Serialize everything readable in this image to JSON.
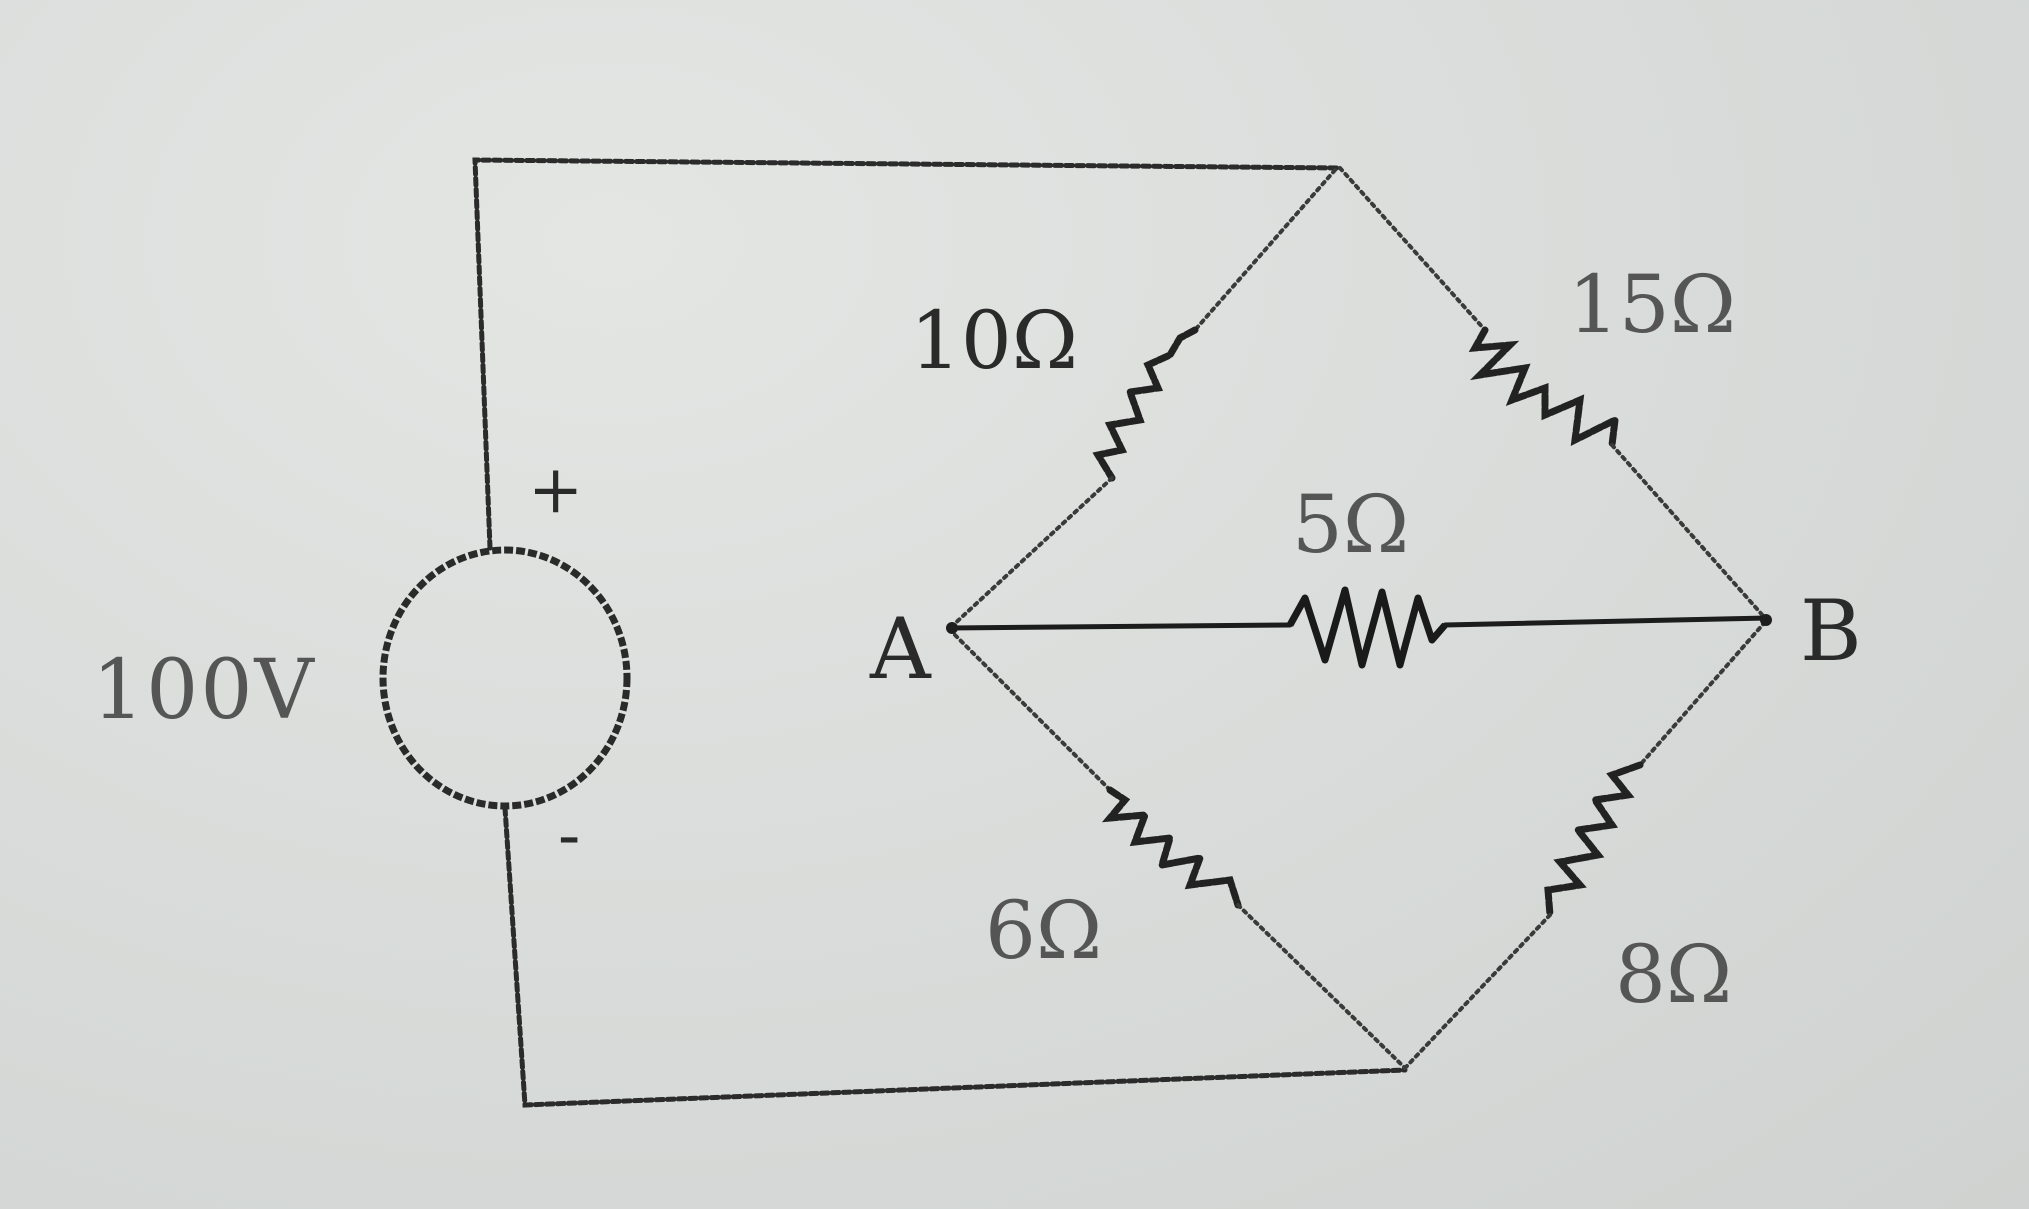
{
  "source": {
    "voltage_label": "100V",
    "plus_sign": "+",
    "minus_sign": "-"
  },
  "nodes": {
    "left_label": "A",
    "right_label": "B"
  },
  "resistors": {
    "top_left": "10Ω",
    "top_right": "15Ω",
    "middle": "5Ω",
    "bottom_left": "6Ω",
    "bottom_right": "8Ω"
  }
}
